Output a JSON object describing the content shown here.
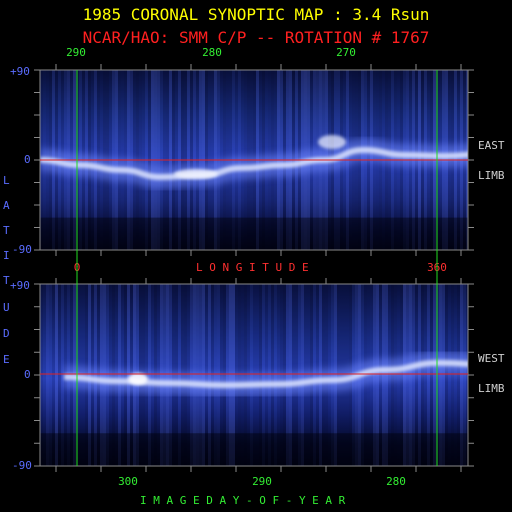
{
  "header": {
    "title": "1985 CORONAL SYNOPTIC MAP : 3.4 Rsun",
    "subtitle": "NCAR/HAO: SMM C/P -- ROTATION # 1767"
  },
  "colors": {
    "title": "#ffff00",
    "subtitle": "#ff2020",
    "marker_line": "#22dd22",
    "equator_line": "#e02020",
    "latitude_axis": "#5a6cff",
    "frame": "#8a8a8a"
  },
  "labels": {
    "latitude_axis": [
      "L",
      "A",
      "T",
      "I",
      "T",
      "U",
      "D",
      "E"
    ],
    "longitude_axis": "L O N G I T U D E",
    "day_axis": "I M A G E   D A Y - O F - Y E A R",
    "east_limb": [
      "EAST",
      "LIMB"
    ],
    "west_limb": [
      "WEST",
      "LIMB"
    ]
  },
  "chart_data": [
    {
      "type": "heatmap",
      "panel": "east-limb",
      "ylim": [
        -90,
        90
      ],
      "y_ticks": [
        "+90",
        "0",
        "-90"
      ],
      "top_axis_ticks": [
        {
          "label": "290",
          "value": 290
        },
        {
          "label": "280",
          "value": 280
        },
        {
          "label": "270",
          "value": 270
        }
      ],
      "bottom_axis_ticks": [
        {
          "label": "0",
          "value": 0
        },
        {
          "label": "360",
          "value": 360
        }
      ],
      "equator_latitude": 0,
      "marker_lines_longitude": [
        0,
        360
      ],
      "streamer_belt_latitude": [
        {
          "day": 296.0,
          "lat": 0
        },
        {
          "day": 293.0,
          "lat": -5
        },
        {
          "day": 290.0,
          "lat": -10
        },
        {
          "day": 287.0,
          "lat": -17
        },
        {
          "day": 284.0,
          "lat": -15
        },
        {
          "day": 281.0,
          "lat": -8
        },
        {
          "day": 278.0,
          "lat": -5
        },
        {
          "day": 275.0,
          "lat": 0
        },
        {
          "day": 272.0,
          "lat": 10
        },
        {
          "day": 269.0,
          "lat": 5
        },
        {
          "day": 266.0,
          "lat": 4
        },
        {
          "day": 263.0,
          "lat": 6
        },
        {
          "day": 260.0,
          "lat": 7
        }
      ]
    },
    {
      "type": "heatmap",
      "panel": "west-limb",
      "ylim": [
        -90,
        90
      ],
      "y_ticks": [
        "+90",
        "0",
        "-90"
      ],
      "bottom_axis_ticks": [
        {
          "label": "300",
          "value": 300
        },
        {
          "label": "290",
          "value": 290
        },
        {
          "label": "280",
          "value": 280
        }
      ],
      "equator_latitude": 0,
      "streamer_belt_latitude": [
        {
          "day": 310.0,
          "lat": -2
        },
        {
          "day": 306.0,
          "lat": -6
        },
        {
          "day": 302.0,
          "lat": -8
        },
        {
          "day": 298.0,
          "lat": -10
        },
        {
          "day": 294.0,
          "lat": -9
        },
        {
          "day": 290.0,
          "lat": -5
        },
        {
          "day": 286.0,
          "lat": 5
        },
        {
          "day": 282.0,
          "lat": 12
        },
        {
          "day": 278.0,
          "lat": 10
        },
        {
          "day": 274.0,
          "lat": 0
        }
      ]
    }
  ]
}
